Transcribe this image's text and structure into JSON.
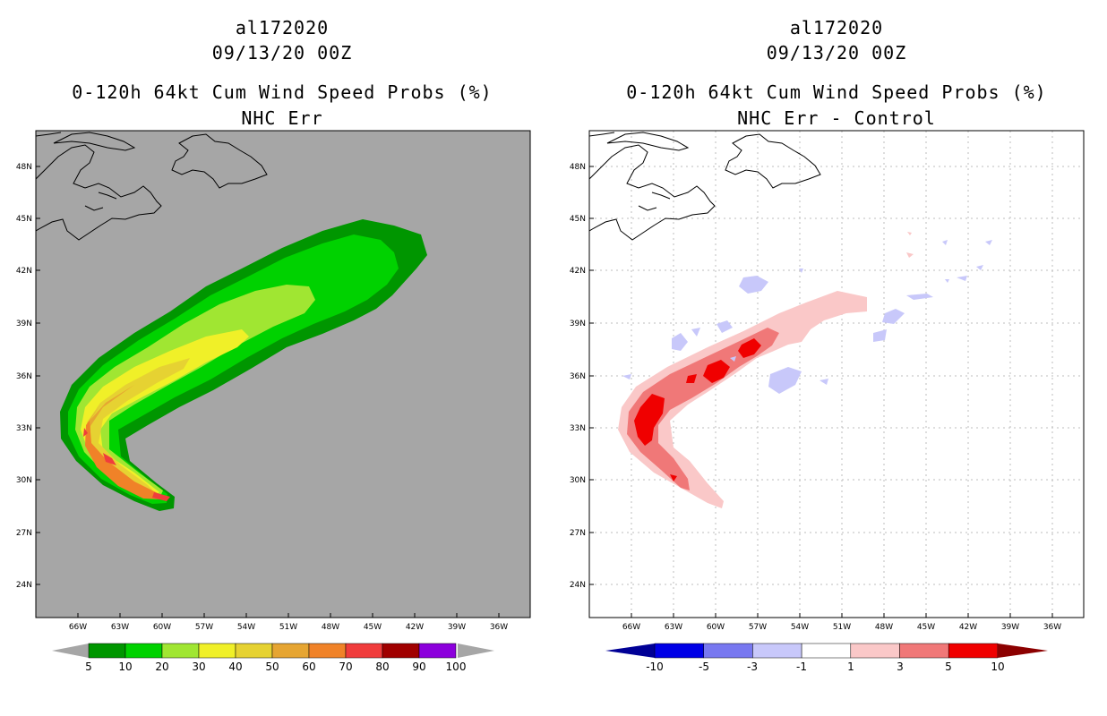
{
  "left_panel": {
    "storm_id": "al172020",
    "datetime": "09/13/20 00Z",
    "product": "0-120h 64kt Cum Wind Speed Probs (%)",
    "subtitle": "NHC Err",
    "background_color": "#a6a6a6",
    "lat_labels": [
      "48N",
      "45N",
      "42N",
      "39N",
      "36N",
      "33N",
      "30N",
      "27N",
      "24N"
    ],
    "lon_labels": [
      "66W",
      "63W",
      "60W",
      "57W",
      "54W",
      "51W",
      "48W",
      "45W",
      "42W",
      "39W",
      "36W"
    ],
    "colorbar": {
      "labels": [
        "5",
        "10",
        "20",
        "30",
        "40",
        "50",
        "60",
        "70",
        "80",
        "90",
        "100"
      ],
      "colors": [
        "#009600",
        "#00d200",
        "#a0e632",
        "#f0f028",
        "#e6d232",
        "#e6a532",
        "#f08228",
        "#f03c3c",
        "#a00000",
        "#8c00dc"
      ],
      "arrow_color": "#a6a6a6"
    }
  },
  "right_panel": {
    "storm_id": "al172020",
    "datetime": "09/13/20 00Z",
    "product": "0-120h 64kt Cum Wind Speed Probs (%)",
    "subtitle": "NHC Err - Control",
    "background_color": "#ffffff",
    "lat_labels": [
      "48N",
      "45N",
      "42N",
      "39N",
      "36N",
      "33N",
      "30N",
      "27N",
      "24N"
    ],
    "lon_labels": [
      "66W",
      "63W",
      "60W",
      "57W",
      "54W",
      "51W",
      "48W",
      "45W",
      "42W",
      "39W",
      "36W"
    ],
    "colorbar": {
      "labels": [
        "-10",
        "-5",
        "-3",
        "-1",
        "1",
        "3",
        "5",
        "10"
      ],
      "colors": [
        "#0000e6",
        "#7878f0",
        "#c8c8fa",
        "#ffffff",
        "#fac8c8",
        "#f07878",
        "#f00000"
      ],
      "left_arrow_color": "#000096",
      "right_arrow_color": "#8c0000"
    }
  }
}
